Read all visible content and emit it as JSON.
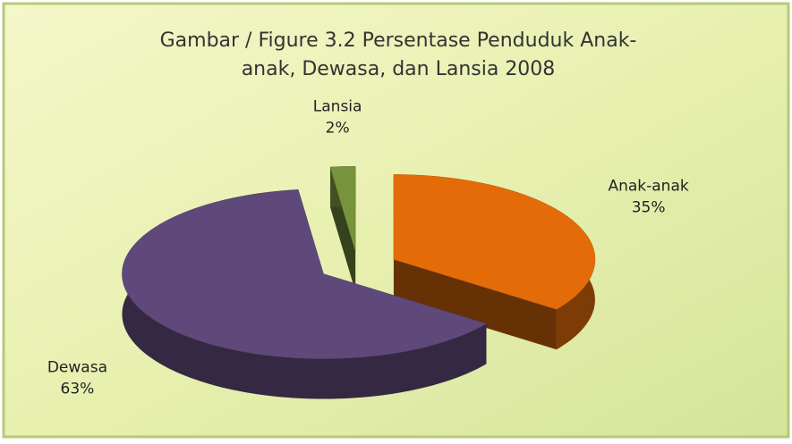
{
  "chart_data": {
    "type": "pie",
    "title": [
      "Gambar / Figure 3.2 Persentase Penduduk Anak-",
      "anak, Dewasa, dan Lansia 2008"
    ],
    "categories": [
      "Anak-anak",
      "Dewasa",
      "Lansia"
    ],
    "values": [
      35,
      63,
      2
    ],
    "value_labels": [
      "35%",
      "63%",
      "2%"
    ],
    "colors": [
      "#e36c09",
      "#5f497a",
      "#77933c"
    ]
  }
}
